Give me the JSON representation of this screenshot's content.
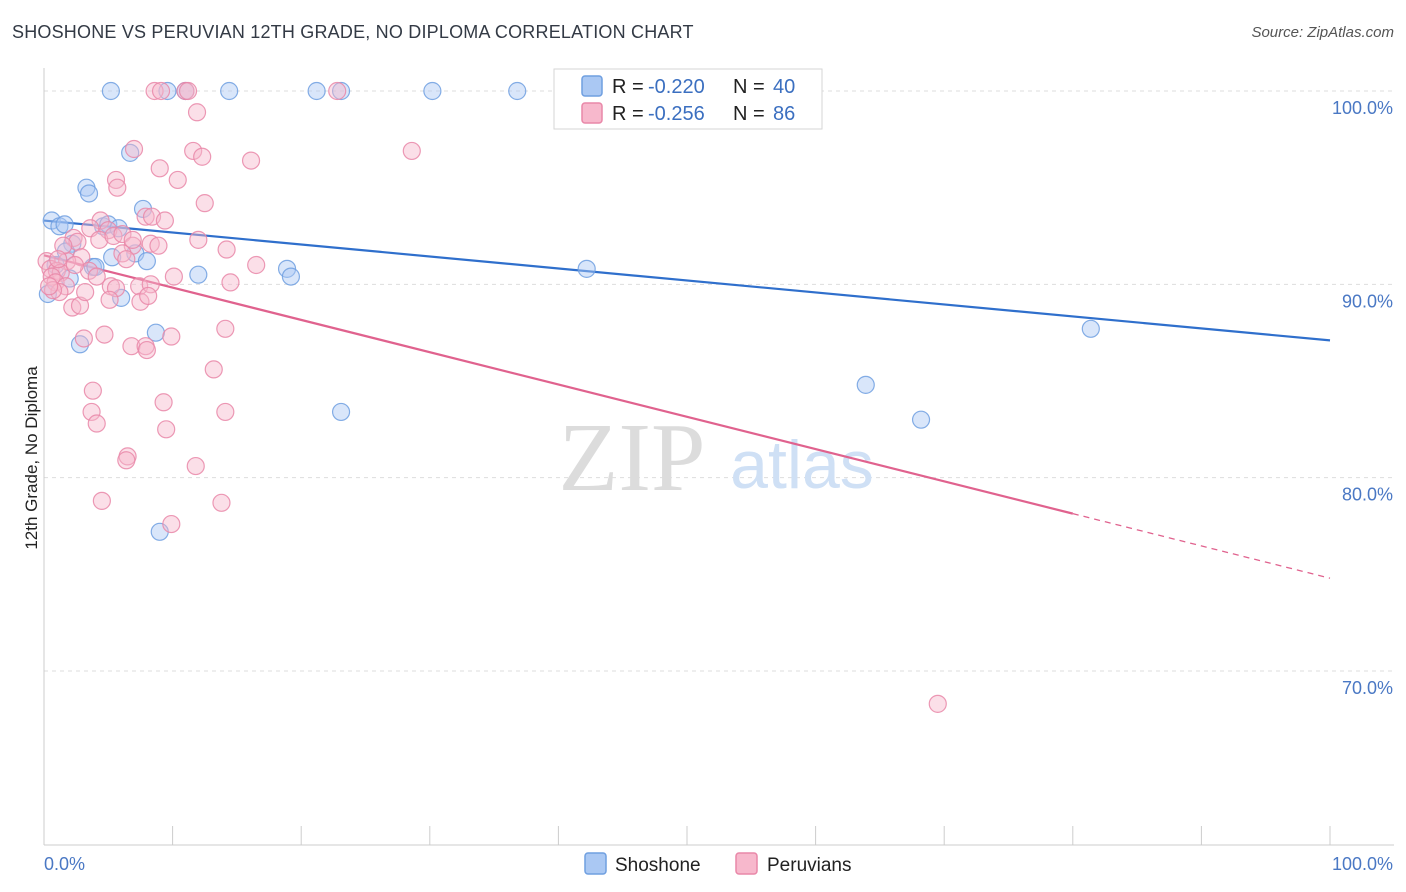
{
  "title": "SHOSHONE VS PERUVIAN 12TH GRADE, NO DIPLOMA CORRELATION CHART",
  "source": "Source: ZipAtlas.com",
  "watermark": {
    "zip": "ZIP",
    "atlas": "atlas"
  },
  "chart_data": {
    "type": "scatter",
    "ylabel": "12th Grade, No Diploma",
    "xlim": [
      0,
      100
    ],
    "ylim": [
      61,
      101.5
    ],
    "y_ticks": [
      {
        "value": 100,
        "label": "100.0%"
      },
      {
        "value": 90,
        "label": "90.0%"
      },
      {
        "value": 80,
        "label": "80.0%"
      },
      {
        "value": 70,
        "label": "70.0%"
      }
    ],
    "x_tick_labels": [
      {
        "value": 0,
        "label": "0.0%"
      },
      {
        "value": 100,
        "label": "100.0%"
      }
    ],
    "x_minor_ticks": [
      0,
      10,
      20,
      30,
      40,
      50,
      60,
      70,
      80,
      90,
      100
    ],
    "legend": [
      {
        "name": "Shoshone",
        "r_label": "R =",
        "r": "-0.220",
        "n_label": "N =",
        "n": "40",
        "color": "#6f9fe0",
        "fill": "#aac8f3",
        "line": "#2f6fcc"
      },
      {
        "name": "Peruvians",
        "r_label": "R =",
        "r": "-0.256",
        "n_label": "N =",
        "n": "86",
        "color": "#e987a8",
        "fill": "#f7b8cc",
        "line": "#e0628e"
      }
    ],
    "series": [
      {
        "name": "Shoshone",
        "trend": {
          "x0": 0,
          "y0": 93.3,
          "x1": 100,
          "y1": 87.1,
          "solid_to": 100
        },
        "points": [
          [
            5.2,
            100
          ],
          [
            9.6,
            100
          ],
          [
            11,
            100
          ],
          [
            14.4,
            100
          ],
          [
            21.2,
            100
          ],
          [
            23.1,
            100
          ],
          [
            30.2,
            100
          ],
          [
            36.8,
            100
          ],
          [
            0.6,
            93.3
          ],
          [
            1.2,
            93.0
          ],
          [
            1.6,
            93.1
          ],
          [
            3.3,
            95.0
          ],
          [
            3.5,
            94.7
          ],
          [
            6.7,
            96.8
          ],
          [
            7.7,
            93.9
          ],
          [
            4.6,
            93.0
          ],
          [
            5.0,
            93.1
          ],
          [
            5.8,
            92.9
          ],
          [
            2.2,
            92.1
          ],
          [
            1.7,
            91.7
          ],
          [
            5.3,
            91.4
          ],
          [
            7.1,
            91.6
          ],
          [
            3.8,
            90.9
          ],
          [
            4.0,
            90.9
          ],
          [
            2.0,
            90.3
          ],
          [
            0.3,
            89.5
          ],
          [
            6.0,
            89.3
          ],
          [
            12.0,
            90.5
          ],
          [
            18.9,
            90.8
          ],
          [
            19.2,
            90.4
          ],
          [
            42.2,
            90.8
          ],
          [
            2.8,
            86.9
          ],
          [
            8.7,
            87.5
          ],
          [
            23.1,
            83.4
          ],
          [
            81.4,
            87.7
          ],
          [
            63.9,
            84.8
          ],
          [
            68.2,
            83.0
          ],
          [
            9.0,
            77.2
          ],
          [
            0.9,
            91.0
          ],
          [
            8.0,
            91.2
          ]
        ]
      },
      {
        "name": "Peruvians",
        "trend": {
          "x0": 0,
          "y0": 91.5,
          "x1": 100,
          "y1": 74.8,
          "solid_to": 80
        },
        "points": [
          [
            8.6,
            100
          ],
          [
            9.1,
            100
          ],
          [
            11.0,
            100
          ],
          [
            11.2,
            100
          ],
          [
            22.8,
            100
          ],
          [
            11.9,
            98.9
          ],
          [
            7.0,
            97.0
          ],
          [
            11.6,
            96.9
          ],
          [
            12.3,
            96.6
          ],
          [
            16.1,
            96.4
          ],
          [
            28.6,
            96.9
          ],
          [
            9.0,
            96.0
          ],
          [
            5.6,
            95.4
          ],
          [
            5.7,
            95.0
          ],
          [
            10.4,
            95.4
          ],
          [
            12.5,
            94.2
          ],
          [
            7.9,
            93.5
          ],
          [
            8.4,
            93.5
          ],
          [
            4.4,
            93.3
          ],
          [
            5.0,
            92.8
          ],
          [
            3.6,
            92.9
          ],
          [
            2.3,
            92.4
          ],
          [
            2.6,
            92.2
          ],
          [
            4.3,
            92.3
          ],
          [
            5.4,
            92.5
          ],
          [
            6.1,
            92.6
          ],
          [
            6.9,
            92.0
          ],
          [
            8.3,
            92.1
          ],
          [
            14.2,
            91.8
          ],
          [
            6.1,
            91.6
          ],
          [
            6.4,
            91.3
          ],
          [
            2.9,
            91.4
          ],
          [
            1.8,
            91.2
          ],
          [
            0.2,
            91.2
          ],
          [
            0.5,
            90.8
          ],
          [
            1.0,
            90.7
          ],
          [
            1.3,
            90.6
          ],
          [
            0.6,
            90.4
          ],
          [
            0.9,
            90.1
          ],
          [
            1.7,
            89.9
          ],
          [
            1.2,
            89.6
          ],
          [
            0.7,
            89.7
          ],
          [
            3.5,
            90.7
          ],
          [
            4.1,
            90.4
          ],
          [
            16.5,
            91.0
          ],
          [
            5.2,
            89.9
          ],
          [
            5.6,
            89.8
          ],
          [
            7.4,
            89.9
          ],
          [
            8.3,
            90.0
          ],
          [
            10.1,
            90.4
          ],
          [
            14.5,
            90.1
          ],
          [
            5.1,
            89.2
          ],
          [
            7.5,
            89.1
          ],
          [
            8.1,
            89.4
          ],
          [
            2.2,
            88.8
          ],
          [
            2.8,
            88.9
          ],
          [
            4.7,
            87.4
          ],
          [
            3.1,
            87.2
          ],
          [
            6.8,
            86.8
          ],
          [
            7.9,
            86.8
          ],
          [
            8.0,
            86.6
          ],
          [
            9.9,
            87.3
          ],
          [
            14.1,
            87.7
          ],
          [
            13.2,
            85.6
          ],
          [
            3.8,
            84.5
          ],
          [
            9.3,
            83.9
          ],
          [
            3.7,
            83.4
          ],
          [
            14.1,
            83.4
          ],
          [
            4.1,
            82.8
          ],
          [
            9.5,
            82.5
          ],
          [
            6.5,
            81.1
          ],
          [
            6.4,
            80.9
          ],
          [
            11.8,
            80.6
          ],
          [
            4.5,
            78.8
          ],
          [
            13.8,
            78.7
          ],
          [
            9.9,
            77.6
          ],
          [
            69.5,
            68.3
          ],
          [
            1.5,
            92.0
          ],
          [
            2.4,
            91.0
          ],
          [
            6.9,
            92.3
          ],
          [
            0.4,
            89.9
          ],
          [
            3.2,
            89.6
          ],
          [
            8.9,
            92.0
          ],
          [
            12.0,
            92.3
          ],
          [
            9.4,
            93.3
          ],
          [
            1.1,
            91.3
          ]
        ]
      }
    ]
  }
}
